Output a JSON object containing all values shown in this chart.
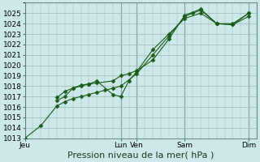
{
  "bg_color": "#cce8e8",
  "grid_color": "#99bbbb",
  "line_color": "#1a5c1a",
  "marker_color": "#1a5c1a",
  "ylim": [
    1013,
    1026
  ],
  "yticks": [
    1013,
    1014,
    1015,
    1016,
    1017,
    1018,
    1019,
    1020,
    1021,
    1022,
    1023,
    1024,
    1025
  ],
  "xlabel": "Pression niveau de la mer( hPa )",
  "xlabel_fontsize": 8,
  "tick_fontsize": 6.5,
  "xtick_labels": [
    "Jeu",
    "Lun",
    "Ven",
    "Sam",
    "Dim"
  ],
  "xtick_positions": [
    0,
    12,
    14,
    20,
    28
  ],
  "xlim": [
    0,
    29
  ],
  "vline_positions": [
    0,
    12,
    14,
    20,
    28
  ],
  "total_xsteps": 29,
  "series": [
    {
      "x": [
        0,
        2,
        4,
        5,
        6,
        7,
        8,
        9,
        10,
        11,
        12,
        14,
        16,
        18,
        20,
        21,
        22,
        24,
        26,
        28
      ],
      "y": [
        1013.0,
        1014.2,
        1016.1,
        1016.5,
        1016.8,
        1017.0,
        1017.2,
        1017.4,
        1017.6,
        1017.8,
        1018.0,
        1019.2,
        1021.0,
        1022.8,
        1024.7,
        1025.0,
        1025.3,
        1024.0,
        1024.0,
        1025.0
      ],
      "marker": "D",
      "markersize": 2.5
    },
    {
      "x": [
        4,
        5,
        6,
        7,
        8,
        9,
        11,
        12,
        13,
        14,
        16,
        18,
        20,
        22,
        24,
        26,
        28
      ],
      "y": [
        1016.6,
        1017.0,
        1017.8,
        1018.1,
        1018.2,
        1018.5,
        1017.2,
        1017.0,
        1018.5,
        1019.4,
        1021.5,
        1023.0,
        1024.5,
        1025.0,
        1024.0,
        1023.9,
        1025.0
      ],
      "marker": "D",
      "markersize": 2.5
    },
    {
      "x": [
        4,
        5,
        6,
        7,
        8,
        9,
        11,
        12,
        13,
        14,
        16,
        18,
        20,
        22,
        24,
        26,
        28
      ],
      "y": [
        1016.9,
        1017.5,
        1017.8,
        1018.0,
        1018.2,
        1018.3,
        1018.5,
        1019.0,
        1019.2,
        1019.5,
        1020.5,
        1022.5,
        1024.8,
        1025.4,
        1024.0,
        1023.9,
        1024.7
      ],
      "marker": "D",
      "markersize": 2.5
    }
  ]
}
